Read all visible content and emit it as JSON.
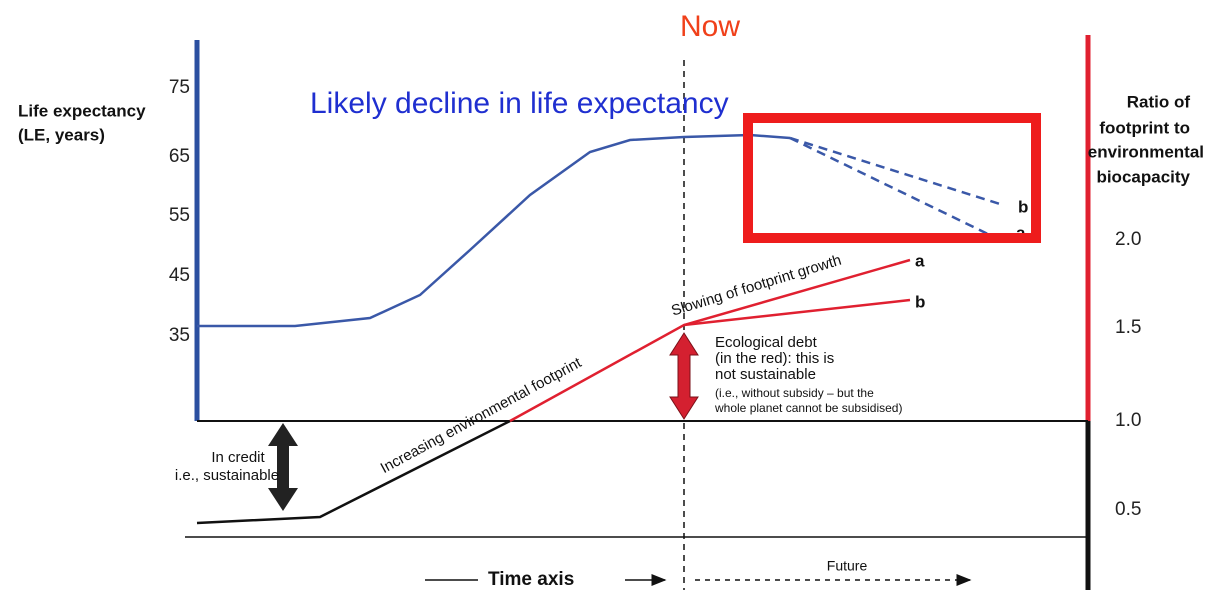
{
  "title": "Now",
  "subtitle": "Likely decline in life expectancy",
  "left_axis": {
    "label": [
      "Life expectancy",
      "(LE, years)"
    ],
    "ticks": [
      "75",
      "65",
      "55",
      "45",
      "35"
    ]
  },
  "right_axis": {
    "label": [
      "Ratio of",
      "footprint to",
      "environmental",
      "biocapacity"
    ],
    "ticks": [
      "2.0",
      "1.5",
      "1.0",
      "0.5"
    ]
  },
  "curve_labels": {
    "le_b": "b",
    "le_a": "a",
    "fp_a": "a",
    "fp_b": "b"
  },
  "annotations": {
    "increasing": "Increasing environmental footprint",
    "slowing": "Slowing of footprint growth",
    "debt": [
      "Ecological debt",
      "(in the red): this is",
      "not sustainable"
    ],
    "debt_note": [
      "(i.e., without subsidy – but the",
      "whole planet cannot be subsidised)"
    ],
    "credit": [
      "In credit",
      "i.e., sustainable"
    ]
  },
  "time_axis": "Time axis",
  "future": "Future"
}
